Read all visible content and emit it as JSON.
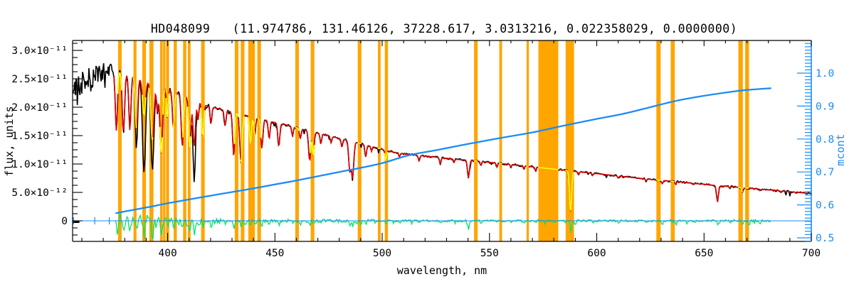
{
  "title": "HD048099   (11.974786, 131.46126, 37228.617, 3.0313216, 0.022358029, 0.0000000)",
  "colors": {
    "background": "#ffffff",
    "axis": "#000000",
    "masked_band": "#ffa500",
    "observed": "#000000",
    "fit": "#dd0000",
    "fit_masked": "#ffff00",
    "residual": "#00e468",
    "mcont": "#1b8cf5",
    "zero_line": "#1b8cf5"
  },
  "chart_data": {
    "type": "line",
    "title": "HD048099   (11.974786, 131.46126, 37228.617, 3.0313216, 0.022358029, 0.0000000)",
    "xlabel": "wavelength, nm",
    "ylabel_left": "flux, units",
    "ylabel_right": "mcont",
    "xlim": [
      355.7,
      700.0
    ],
    "x_ticks": [
      400,
      450,
      500,
      550,
      600,
      650,
      700
    ],
    "x_minor_step": 10,
    "flux_scale": 1e-12,
    "flux_lim_e12": [
      -3.63,
      31.75
    ],
    "flux_ticks": [
      {
        "value_e12": 0,
        "label": "0"
      },
      {
        "value_e12": 5,
        "label": "5.0×10⁻¹²"
      },
      {
        "value_e12": 10,
        "label": "1.0×10⁻¹¹"
      },
      {
        "value_e12": 15,
        "label": "1.5×10⁻¹¹"
      },
      {
        "value_e12": 20,
        "label": "2.0×10⁻¹¹"
      },
      {
        "value_e12": 25,
        "label": "2.5×10⁻¹¹"
      },
      {
        "value_e12": 30,
        "label": "3.0×10⁻¹¹"
      }
    ],
    "flux_minor_step_e12": 1.25,
    "mcont_lim": [
      0.489,
      1.099
    ],
    "mcont_ticks": [
      {
        "value": 0.5,
        "label": "0.5"
      },
      {
        "value": 0.6,
        "label": "0.6"
      },
      {
        "value": 0.7,
        "label": "0.7"
      },
      {
        "value": 0.8,
        "label": "0.8"
      },
      {
        "value": 0.9,
        "label": "0.9"
      },
      {
        "value": 1.0,
        "label": "1.0"
      }
    ],
    "mcont_minor_step": 0.01,
    "series": [
      {
        "name": "observed spectrum",
        "color": "#000000",
        "extent_nm": [
          355.8,
          700.8
        ]
      },
      {
        "name": "model fit",
        "color": "#dd0000",
        "extent_nm": [
          375.0,
          698.5
        ]
      },
      {
        "name": "model fit in masked bands",
        "color": "#ffff00"
      },
      {
        "name": "residual",
        "color": "#00e468",
        "extent_nm": [
          375.6,
          681.6
        ]
      },
      {
        "name": "mcont",
        "color": "#1b8cf5",
        "extent_nm": [
          376.0,
          681.0
        ]
      },
      {
        "name": "zero level line",
        "color": "#1b8cf5",
        "extent_nm": [
          355.7,
          700.0
        ]
      }
    ],
    "masked_bands_nm": [
      [
        376.9,
        378.6
      ],
      [
        384.1,
        385.5
      ],
      [
        388.2,
        389.9
      ],
      [
        391.5,
        393.4
      ],
      [
        396.5,
        397.7
      ],
      [
        397.9,
        399.0
      ],
      [
        399.3,
        400.7
      ],
      [
        402.8,
        404.3
      ],
      [
        407.2,
        408.7
      ],
      [
        409.4,
        410.7
      ],
      [
        415.6,
        417.3
      ],
      [
        431.3,
        433.0
      ],
      [
        434.1,
        435.8
      ],
      [
        437.6,
        440.7
      ],
      [
        441.8,
        443.5
      ],
      [
        459.5,
        461.2
      ],
      [
        466.7,
        468.4
      ],
      [
        488.6,
        490.3
      ],
      [
        498.0,
        499.3
      ],
      [
        501.2,
        502.7
      ],
      [
        542.8,
        544.5
      ],
      [
        554.6,
        555.9
      ],
      [
        567.3,
        568.4
      ],
      [
        572.8,
        582.1
      ],
      [
        585.5,
        589.4
      ],
      [
        627.8,
        629.8
      ],
      [
        634.5,
        636.4
      ],
      [
        666.0,
        668.1
      ],
      [
        669.2,
        671.0
      ]
    ],
    "observed_gap_nm": [
      573.0,
      581.9
    ],
    "continuum_e12": [
      [
        356,
        25.0
      ],
      [
        358,
        24.6
      ],
      [
        360,
        24.9
      ],
      [
        362,
        25.3
      ],
      [
        364,
        25.8
      ],
      [
        366,
        26.3
      ],
      [
        368,
        26.8
      ],
      [
        370,
        27.0
      ],
      [
        372,
        26.7
      ],
      [
        374,
        26.5
      ],
      [
        376,
        26.4
      ],
      [
        378,
        26.2
      ],
      [
        380,
        26.0
      ],
      [
        383,
        25.6
      ],
      [
        386,
        25.2
      ],
      [
        389,
        24.8
      ],
      [
        392,
        24.4
      ],
      [
        395,
        24.0
      ],
      [
        398,
        23.5
      ],
      [
        400,
        23.2
      ],
      [
        403,
        22.7
      ],
      [
        406,
        22.2
      ],
      [
        409,
        21.8
      ],
      [
        412,
        21.3
      ],
      [
        415,
        20.8
      ],
      [
        418,
        20.3
      ],
      [
        421,
        20.0
      ],
      [
        425,
        19.6
      ],
      [
        430,
        19.2
      ],
      [
        435,
        18.7
      ],
      [
        440,
        18.3
      ],
      [
        445,
        17.8
      ],
      [
        450,
        17.3
      ],
      [
        455,
        16.9
      ],
      [
        460,
        16.4
      ],
      [
        465,
        15.9
      ],
      [
        470,
        15.4
      ],
      [
        475,
        15.0
      ],
      [
        480,
        14.5
      ],
      [
        485,
        14.1
      ],
      [
        490,
        13.6
      ],
      [
        495,
        13.1
      ],
      [
        500,
        12.6
      ],
      [
        505,
        12.1
      ],
      [
        510,
        11.8
      ],
      [
        515,
        11.6
      ],
      [
        520,
        11.4
      ],
      [
        525,
        11.2
      ],
      [
        530,
        11.0
      ],
      [
        535,
        10.8
      ],
      [
        540,
        10.7
      ],
      [
        545,
        10.5
      ],
      [
        550,
        10.3
      ],
      [
        555,
        10.1
      ],
      [
        560,
        9.9
      ],
      [
        565,
        9.7
      ],
      [
        570,
        9.5
      ],
      [
        575,
        9.3
      ],
      [
        580,
        9.1
      ],
      [
        585,
        8.9
      ],
      [
        590,
        8.7
      ],
      [
        595,
        8.5
      ],
      [
        600,
        8.3
      ],
      [
        605,
        8.1
      ],
      [
        610,
        7.9
      ],
      [
        617,
        7.6
      ],
      [
        625,
        7.3
      ],
      [
        632,
        7.05
      ],
      [
        640,
        6.8
      ],
      [
        648,
        6.5
      ],
      [
        656,
        6.2
      ],
      [
        664,
        5.95
      ],
      [
        672,
        5.7
      ],
      [
        680,
        5.45
      ],
      [
        688,
        5.2
      ],
      [
        694,
        5.0
      ],
      [
        701,
        4.75
      ]
    ],
    "absorption_lines": [
      [
        376.1,
        0.6,
        0.5
      ],
      [
        379.4,
        0.6,
        0.55
      ],
      [
        382.4,
        0.62,
        0.5
      ],
      [
        385.5,
        0.5,
        0.55,
        0.64
      ],
      [
        389.0,
        0.33,
        0.7,
        0.75
      ],
      [
        392.9,
        0.36,
        0.7,
        0.58
      ],
      [
        395.2,
        0.8,
        0.4
      ],
      [
        397.0,
        0.5,
        0.6
      ],
      [
        399.8,
        0.78,
        0.4
      ],
      [
        402.7,
        0.72,
        0.45
      ],
      [
        406.8,
        0.6,
        0.5
      ],
      [
        410.3,
        0.6,
        0.55
      ],
      [
        412.4,
        0.3,
        0.55,
        0.62
      ],
      [
        414.2,
        0.85,
        0.35
      ],
      [
        416.4,
        0.72,
        0.45
      ],
      [
        420.2,
        0.85,
        0.4
      ],
      [
        426.8,
        0.86,
        0.4
      ],
      [
        430.8,
        0.6,
        0.5
      ],
      [
        434.2,
        0.54,
        0.55
      ],
      [
        438.6,
        0.74,
        0.45
      ],
      [
        440.6,
        0.82,
        0.4
      ],
      [
        443.9,
        0.72,
        0.5
      ],
      [
        447.3,
        0.82,
        0.4
      ],
      [
        451.8,
        0.76,
        0.45
      ],
      [
        458.2,
        0.9,
        0.35
      ],
      [
        461.8,
        0.89,
        0.4
      ],
      [
        466.2,
        0.67,
        0.5
      ],
      [
        467.9,
        0.73,
        0.4
      ],
      [
        471.4,
        0.88,
        0.35
      ],
      [
        476.2,
        0.92,
        0.35
      ],
      [
        481.2,
        0.9,
        0.35
      ],
      [
        484.9,
        0.62,
        0.5
      ],
      [
        486.2,
        0.54,
        0.55
      ],
      [
        492.3,
        0.84,
        0.4
      ],
      [
        495.0,
        0.93,
        0.3
      ],
      [
        501.7,
        0.86,
        0.4
      ],
      [
        508.0,
        0.94,
        0.3
      ],
      [
        517.2,
        0.91,
        0.35
      ],
      [
        527.1,
        0.9,
        0.35
      ],
      [
        533.5,
        0.95,
        0.3
      ],
      [
        540.2,
        0.7,
        0.45
      ],
      [
        546.0,
        0.93,
        0.3
      ],
      [
        553.5,
        0.93,
        0.3
      ],
      [
        560.0,
        0.95,
        0.3
      ],
      [
        566.0,
        0.94,
        0.3
      ],
      [
        571.5,
        0.93,
        0.3
      ],
      [
        587.8,
        0.2,
        0.5
      ],
      [
        591.5,
        0.93,
        0.3
      ],
      [
        598.0,
        0.95,
        0.3
      ],
      [
        610.0,
        0.95,
        0.3
      ],
      [
        623.0,
        0.95,
        0.3
      ],
      [
        630.5,
        0.92,
        0.35
      ],
      [
        636.8,
        0.93,
        0.3
      ],
      [
        645.0,
        0.96,
        0.3
      ],
      [
        656.3,
        0.56,
        0.45
      ],
      [
        662.0,
        0.96,
        0.3
      ],
      [
        667.9,
        0.87,
        0.35
      ],
      [
        676.0,
        0.95,
        0.3
      ],
      [
        686.0,
        0.95,
        0.3
      ],
      [
        693.0,
        0.96,
        0.3
      ]
    ],
    "mcont_points": [
      [
        376,
        0.575
      ],
      [
        384,
        0.585
      ],
      [
        392,
        0.5945
      ],
      [
        400,
        0.605
      ],
      [
        410,
        0.6165
      ],
      [
        420,
        0.628
      ],
      [
        430,
        0.639
      ],
      [
        440,
        0.65
      ],
      [
        450,
        0.662
      ],
      [
        460,
        0.674
      ],
      [
        470,
        0.687
      ],
      [
        480,
        0.7
      ],
      [
        490,
        0.7125
      ],
      [
        500,
        0.727
      ],
      [
        513,
        0.7515
      ],
      [
        525,
        0.766
      ],
      [
        540,
        0.785
      ],
      [
        555,
        0.803
      ],
      [
        570,
        0.82
      ],
      [
        585,
        0.841
      ],
      [
        600,
        0.861
      ],
      [
        612,
        0.876
      ],
      [
        624,
        0.895
      ],
      [
        636,
        0.9145
      ],
      [
        648,
        0.929
      ],
      [
        660,
        0.941
      ],
      [
        670,
        0.949
      ],
      [
        681,
        0.954
      ]
    ],
    "residual_spikes_e12": [
      [
        376.5,
        -2.6
      ],
      [
        378.0,
        1.1
      ],
      [
        379.6,
        -2.1
      ],
      [
        381.0,
        1.0
      ],
      [
        382.5,
        -2.3
      ],
      [
        384.0,
        0.9
      ],
      [
        385.6,
        -2.0
      ],
      [
        387.0,
        1.0
      ],
      [
        389.1,
        -3.1
      ],
      [
        390.5,
        0.8
      ],
      [
        393.0,
        -3.5
      ],
      [
        394.5,
        -1.1
      ],
      [
        397.1,
        -2.3
      ],
      [
        398.5,
        0.7
      ],
      [
        400.0,
        -1.2
      ],
      [
        402.8,
        -1.4
      ],
      [
        405.0,
        -0.8
      ],
      [
        406.9,
        -1.5
      ],
      [
        409.0,
        -0.9
      ],
      [
        410.4,
        -1.9
      ],
      [
        412.5,
        -2.5
      ],
      [
        414.5,
        -0.9
      ],
      [
        416.5,
        -1.2
      ],
      [
        418.5,
        -0.6
      ],
      [
        420.3,
        -0.8
      ],
      [
        424.0,
        -0.5
      ],
      [
        427.0,
        -0.7
      ],
      [
        430.9,
        -1.5
      ],
      [
        434.3,
        -1.2
      ],
      [
        436.0,
        -0.7
      ],
      [
        438.7,
        -0.9
      ],
      [
        441.0,
        -0.6
      ],
      [
        444.0,
        -0.8
      ],
      [
        447.4,
        -0.5
      ],
      [
        452.0,
        -0.6
      ],
      [
        458.3,
        -0.4
      ],
      [
        462.0,
        -0.5
      ],
      [
        466.3,
        -0.8
      ],
      [
        468.0,
        -0.5
      ],
      [
        471.5,
        -0.4
      ],
      [
        481.3,
        -0.4
      ],
      [
        485.0,
        -0.7
      ],
      [
        486.3,
        -1.1
      ],
      [
        490.0,
        -0.5
      ],
      [
        492.4,
        -0.5
      ],
      [
        497.0,
        -0.4
      ],
      [
        501.8,
        -0.7
      ],
      [
        508.1,
        -0.4
      ],
      [
        517.3,
        -0.4
      ],
      [
        527.2,
        -0.4
      ],
      [
        534.0,
        -0.3
      ],
      [
        540.3,
        -1.5
      ],
      [
        546.1,
        -0.5
      ],
      [
        553.6,
        -0.4
      ],
      [
        560.1,
        -0.3
      ],
      [
        566.1,
        -0.4
      ],
      [
        571.6,
        -0.4
      ],
      [
        576.0,
        -0.5
      ],
      [
        580.0,
        -0.4
      ],
      [
        588.0,
        -1.9
      ],
      [
        590.0,
        -0.7
      ],
      [
        598.1,
        -0.3
      ],
      [
        610.1,
        -0.3
      ],
      [
        623.1,
        -0.3
      ],
      [
        630.6,
        -0.9
      ],
      [
        636.9,
        -0.6
      ],
      [
        645.1,
        -0.3
      ],
      [
        656.4,
        -0.6
      ],
      [
        662.1,
        -0.3
      ],
      [
        668.0,
        -0.7
      ],
      [
        671.0,
        -0.8
      ],
      [
        676.1,
        -0.4
      ]
    ],
    "zero_line_markers_nm": [
      356.1,
      366.0,
      372.8
    ],
    "zero_stub_nm": [
      356.1,
      358.9
    ]
  }
}
